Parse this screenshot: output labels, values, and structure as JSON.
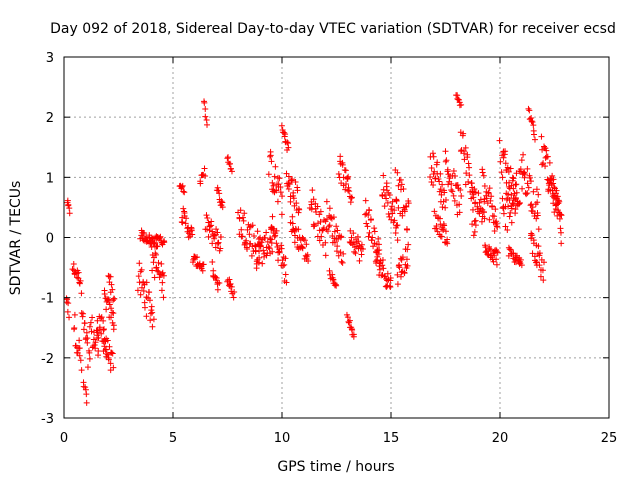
{
  "chart_data": {
    "type": "scatter",
    "title": "Day 092 of 2018, Sidereal Day-to-day VTEC variation (SDTVAR) for receiver ecsd",
    "xlabel": "GPS time / hours",
    "ylabel": "SDTVAR / TECUs",
    "xlim": [
      0,
      25
    ],
    "ylim": [
      -3,
      3
    ],
    "xticks": [
      0,
      5,
      10,
      15,
      20,
      25
    ],
    "yticks": [
      -3,
      -2,
      -1,
      0,
      1,
      2,
      3
    ],
    "grid": true,
    "marker": "+",
    "color": "#ff0000",
    "series": [
      {
        "name": "SDTVAR",
        "segments": [
          {
            "x0": 0.15,
            "x1": 0.25,
            "y0": 0.6,
            "y1": 0.42,
            "amp": 0.05
          },
          {
            "x0": 0.1,
            "x1": 0.22,
            "y0": -0.95,
            "y1": -1.3,
            "amp": 0.1
          },
          {
            "x0": 0.4,
            "x1": 0.75,
            "y0": -0.5,
            "y1": -0.7,
            "amp": 0.1
          },
          {
            "x0": 0.45,
            "x1": 0.8,
            "y0": -1.4,
            "y1": -2.1,
            "amp": 0.25
          },
          {
            "x0": 0.8,
            "x1": 1.2,
            "y0": -1.2,
            "y1": -2.2,
            "amp": 0.3
          },
          {
            "x0": 0.9,
            "x1": 1.05,
            "y0": -2.4,
            "y1": -2.7,
            "amp": 0.05
          },
          {
            "x0": 1.2,
            "x1": 1.6,
            "y0": -1.5,
            "y1": -1.9,
            "amp": 0.3
          },
          {
            "x0": 1.5,
            "x1": 1.95,
            "y0": -1.3,
            "y1": -1.8,
            "amp": 0.25
          },
          {
            "x0": 1.8,
            "x1": 2.25,
            "y0": -1.7,
            "y1": -2.15,
            "amp": 0.2
          },
          {
            "x0": 1.85,
            "x1": 2.3,
            "y0": -1.0,
            "y1": -1.4,
            "amp": 0.15
          },
          {
            "x0": 2.05,
            "x1": 2.3,
            "y0": -0.6,
            "y1": -1.05,
            "amp": 0.12
          },
          {
            "x0": 3.4,
            "x1": 4.1,
            "y0": -0.65,
            "y1": -1.3,
            "amp": 0.3
          },
          {
            "x0": 3.5,
            "x1": 4.3,
            "y0": 0.05,
            "y1": -0.1,
            "amp": 0.08
          },
          {
            "x0": 4.0,
            "x1": 4.6,
            "y0": -0.3,
            "y1": -0.8,
            "amp": 0.25
          },
          {
            "x0": 4.2,
            "x1": 4.6,
            "y0": 0.05,
            "y1": -0.1,
            "amp": 0.05
          },
          {
            "x0": 5.3,
            "x1": 5.5,
            "y0": 0.9,
            "y1": 0.8,
            "amp": 0.05
          },
          {
            "x0": 5.4,
            "x1": 5.9,
            "y0": 0.4,
            "y1": 0.0,
            "amp": 0.15
          },
          {
            "x0": 5.9,
            "x1": 6.4,
            "y0": -0.35,
            "y1": -0.5,
            "amp": 0.08
          },
          {
            "x0": 6.25,
            "x1": 6.45,
            "y0": 0.9,
            "y1": 1.1,
            "amp": 0.08
          },
          {
            "x0": 6.4,
            "x1": 6.55,
            "y0": 2.3,
            "y1": 1.85,
            "amp": 0.05
          },
          {
            "x0": 6.5,
            "x1": 7.2,
            "y0": 0.2,
            "y1": -0.1,
            "amp": 0.2
          },
          {
            "x0": 6.8,
            "x1": 7.1,
            "y0": -0.5,
            "y1": -0.8,
            "amp": 0.1
          },
          {
            "x0": 7.0,
            "x1": 7.3,
            "y0": 0.8,
            "y1": 0.5,
            "amp": 0.08
          },
          {
            "x0": 7.5,
            "x1": 7.7,
            "y0": 1.35,
            "y1": 1.1,
            "amp": 0.05
          },
          {
            "x0": 7.5,
            "x1": 7.8,
            "y0": -0.7,
            "y1": -0.95,
            "amp": 0.08
          },
          {
            "x0": 8.0,
            "x1": 9.0,
            "y0": 0.3,
            "y1": -0.2,
            "amp": 0.3
          },
          {
            "x0": 8.8,
            "x1": 9.6,
            "y0": -0.3,
            "y1": 0.0,
            "amp": 0.25
          },
          {
            "x0": 9.4,
            "x1": 10.0,
            "y0": 1.2,
            "y1": 0.6,
            "amp": 0.3
          },
          {
            "x0": 9.5,
            "x1": 10.2,
            "y0": 0.2,
            "y1": -0.6,
            "amp": 0.25
          },
          {
            "x0": 10.0,
            "x1": 10.3,
            "y0": 1.8,
            "y1": 1.5,
            "amp": 0.1
          },
          {
            "x0": 10.2,
            "x1": 10.8,
            "y0": 0.9,
            "y1": 0.6,
            "amp": 0.25
          },
          {
            "x0": 10.4,
            "x1": 11.2,
            "y0": 0.2,
            "y1": -0.3,
            "amp": 0.2
          },
          {
            "x0": 11.3,
            "x1": 12.0,
            "y0": 0.6,
            "y1": 0.0,
            "amp": 0.3
          },
          {
            "x0": 12.0,
            "x1": 12.8,
            "y0": 0.4,
            "y1": -0.2,
            "amp": 0.25
          },
          {
            "x0": 12.2,
            "x1": 12.5,
            "y0": -0.6,
            "y1": -0.8,
            "amp": 0.05
          },
          {
            "x0": 12.6,
            "x1": 13.2,
            "y0": 1.2,
            "y1": 0.7,
            "amp": 0.2
          },
          {
            "x0": 13.0,
            "x1": 13.3,
            "y0": -1.3,
            "y1": -1.65,
            "amp": 0.05
          },
          {
            "x0": 13.1,
            "x1": 13.7,
            "y0": 0.1,
            "y1": -0.3,
            "amp": 0.2
          },
          {
            "x0": 13.8,
            "x1": 14.5,
            "y0": 0.5,
            "y1": -0.4,
            "amp": 0.3
          },
          {
            "x0": 14.3,
            "x1": 15.0,
            "y0": -0.3,
            "y1": -0.8,
            "amp": 0.2
          },
          {
            "x0": 14.6,
            "x1": 15.3,
            "y0": 0.9,
            "y1": 0.2,
            "amp": 0.25
          },
          {
            "x0": 15.2,
            "x1": 15.8,
            "y0": 0.9,
            "y1": 0.3,
            "amp": 0.3
          },
          {
            "x0": 15.3,
            "x1": 15.8,
            "y0": -0.6,
            "y1": -0.3,
            "amp": 0.2
          },
          {
            "x0": 16.8,
            "x1": 17.5,
            "y0": 1.3,
            "y1": 0.6,
            "amp": 0.3
          },
          {
            "x0": 17.0,
            "x1": 17.6,
            "y0": 0.3,
            "y1": 0.0,
            "amp": 0.15
          },
          {
            "x0": 17.5,
            "x1": 18.2,
            "y0": 1.2,
            "y1": 0.5,
            "amp": 0.3
          },
          {
            "x0": 18.0,
            "x1": 18.2,
            "y0": 2.35,
            "y1": 2.2,
            "amp": 0.05
          },
          {
            "x0": 18.2,
            "x1": 18.9,
            "y0": 1.7,
            "y1": 0.2,
            "amp": 0.4
          },
          {
            "x0": 18.7,
            "x1": 19.3,
            "y0": 0.8,
            "y1": 0.3,
            "amp": 0.2
          },
          {
            "x0": 19.2,
            "x1": 19.9,
            "y0": 0.9,
            "y1": 0.1,
            "amp": 0.3
          },
          {
            "x0": 19.3,
            "x1": 19.9,
            "y0": -0.1,
            "y1": -0.35,
            "amp": 0.15
          },
          {
            "x0": 20.0,
            "x1": 20.8,
            "y0": 1.4,
            "y1": 0.5,
            "amp": 0.3
          },
          {
            "x0": 20.1,
            "x1": 21.0,
            "y0": 0.3,
            "y1": 0.9,
            "amp": 0.35
          },
          {
            "x0": 20.4,
            "x1": 21.0,
            "y0": -0.25,
            "y1": -0.45,
            "amp": 0.08
          },
          {
            "x0": 21.0,
            "x1": 21.8,
            "y0": 1.2,
            "y1": 0.4,
            "amp": 0.3
          },
          {
            "x0": 21.3,
            "x1": 21.6,
            "y0": 2.1,
            "y1": 1.7,
            "amp": 0.08
          },
          {
            "x0": 21.4,
            "x1": 22.0,
            "y0": 0.0,
            "y1": -0.6,
            "amp": 0.2
          },
          {
            "x0": 21.9,
            "x1": 22.8,
            "y0": 1.5,
            "y1": 0.2,
            "amp": 0.3
          },
          {
            "x0": 22.2,
            "x1": 22.8,
            "y0": 0.9,
            "y1": 0.5,
            "amp": 0.2
          }
        ]
      }
    ]
  }
}
